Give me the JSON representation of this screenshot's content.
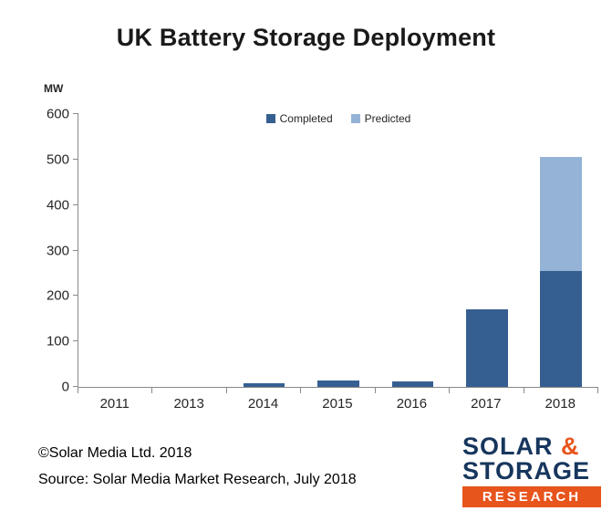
{
  "title": "UK Battery Storage Deployment",
  "footer": {
    "copyright": "©Solar Media Ltd. 2018",
    "source": "Source: Solar Media Market Research, July 2018"
  },
  "logo": {
    "solar": "SOLAR",
    "amp": "&",
    "storage": "STORAGE",
    "research": "RESEARCH",
    "navy_color": "#17365D",
    "orange_color": "#E7541C"
  },
  "chart_data": {
    "type": "bar",
    "stacked": true,
    "title": "UK Battery Storage Deployment",
    "ylabel": "MW",
    "xlabel": "",
    "ylim": [
      0,
      600
    ],
    "yticks": [
      0,
      100,
      200,
      300,
      400,
      500,
      600
    ],
    "grid": false,
    "legend_position": "top-center",
    "categories": [
      "2011",
      "2013",
      "2014",
      "2015",
      "2016",
      "2017",
      "2018"
    ],
    "series": [
      {
        "name": "Completed",
        "color": "#365F91",
        "values": [
          0,
          0,
          8,
          15,
          12,
          170,
          255
        ]
      },
      {
        "name": "Predicted",
        "color": "#95B3D7",
        "values": [
          0,
          0,
          0,
          0,
          0,
          0,
          250
        ]
      }
    ]
  }
}
